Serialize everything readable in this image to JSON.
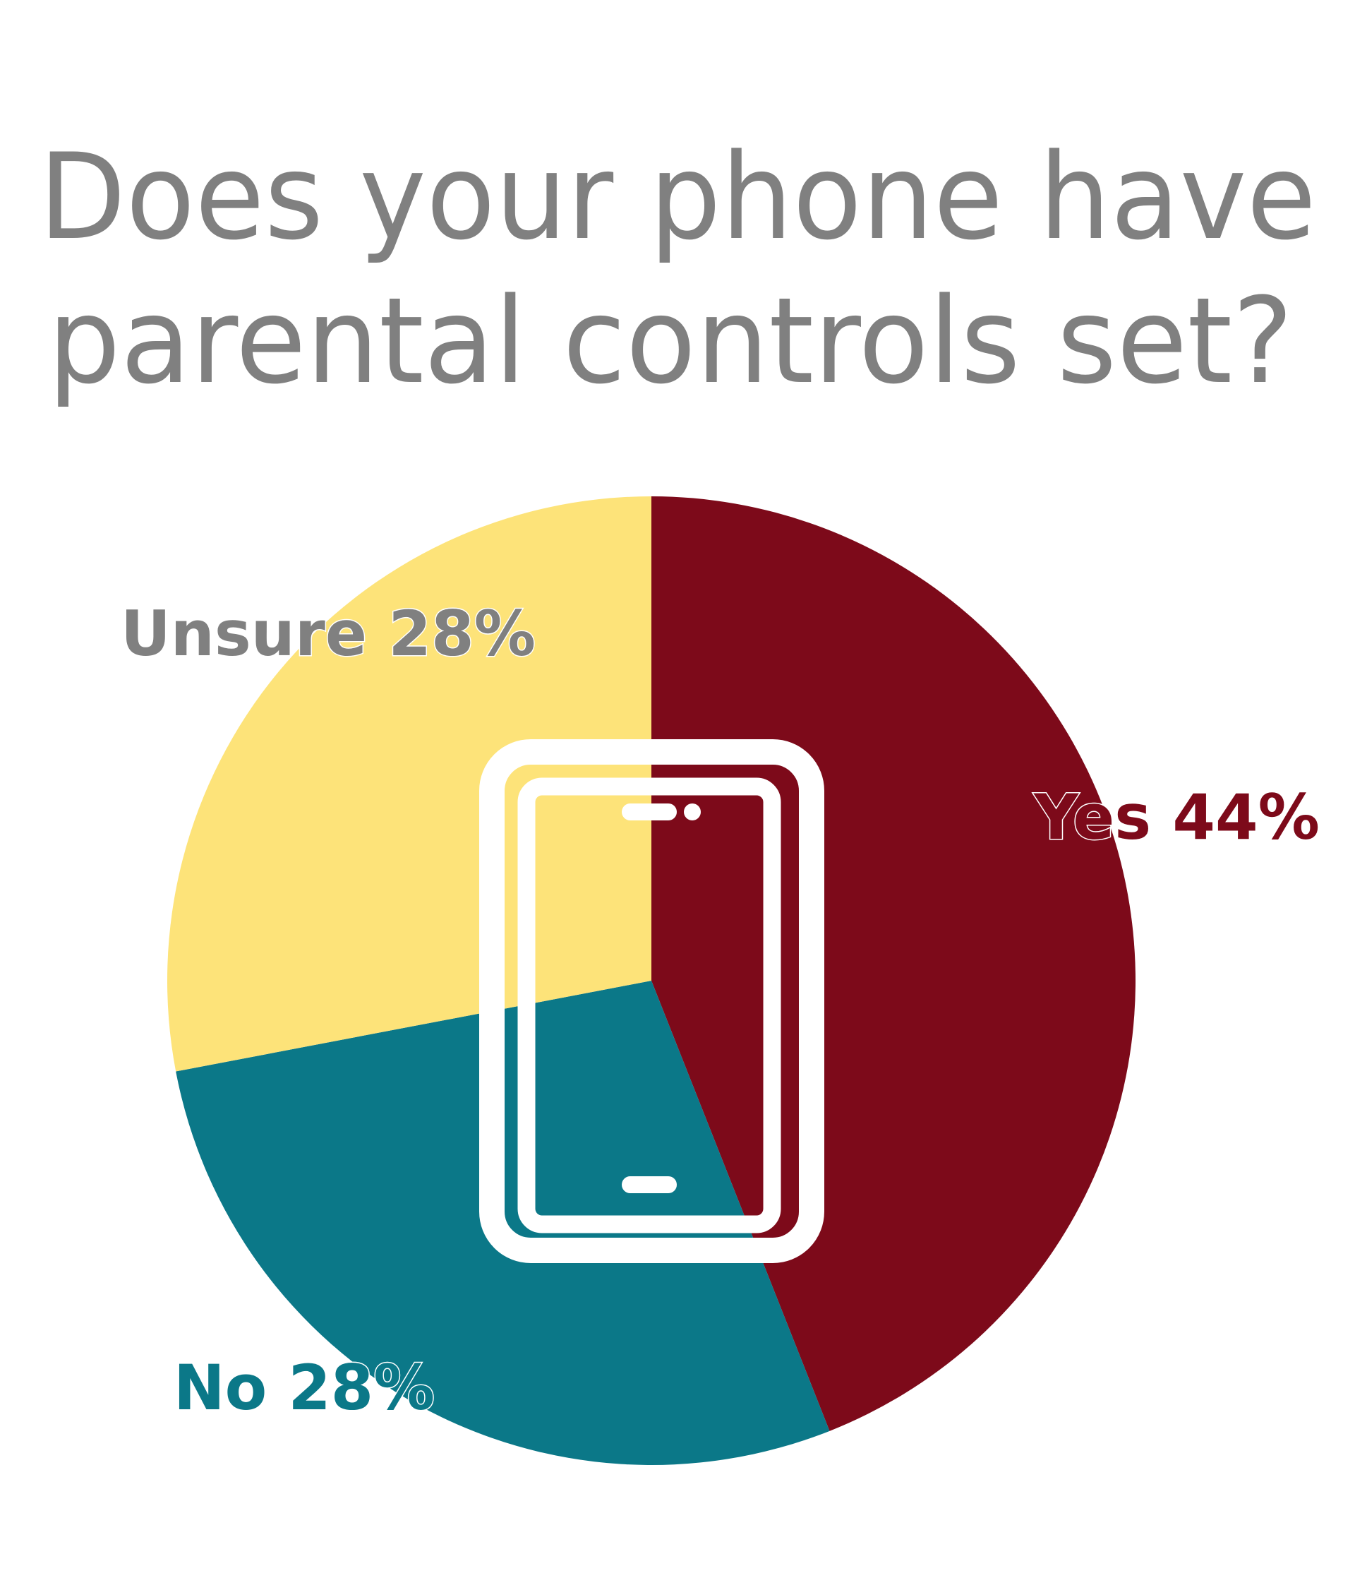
{
  "chart_data": {
    "type": "pie",
    "title": [
      "Does your phone have",
      "parental controls set?"
    ],
    "start_angle_deg": 0,
    "direction": "clockwise",
    "slices": [
      {
        "label": "Yes 44%",
        "category": "Yes",
        "value": 44,
        "color": "#7D0A1A",
        "label_color": "#7D0A1A"
      },
      {
        "label": "No 28%",
        "category": "No",
        "value": 28,
        "color": "#0B7888",
        "label_color": "#0B7888"
      },
      {
        "label": "Unsure 28%",
        "category": "Unsure",
        "value": 28,
        "color": "#FDE379",
        "label_color": "#808080"
      }
    ],
    "center_icon": "smartphone-icon",
    "title_color": "#808080"
  }
}
